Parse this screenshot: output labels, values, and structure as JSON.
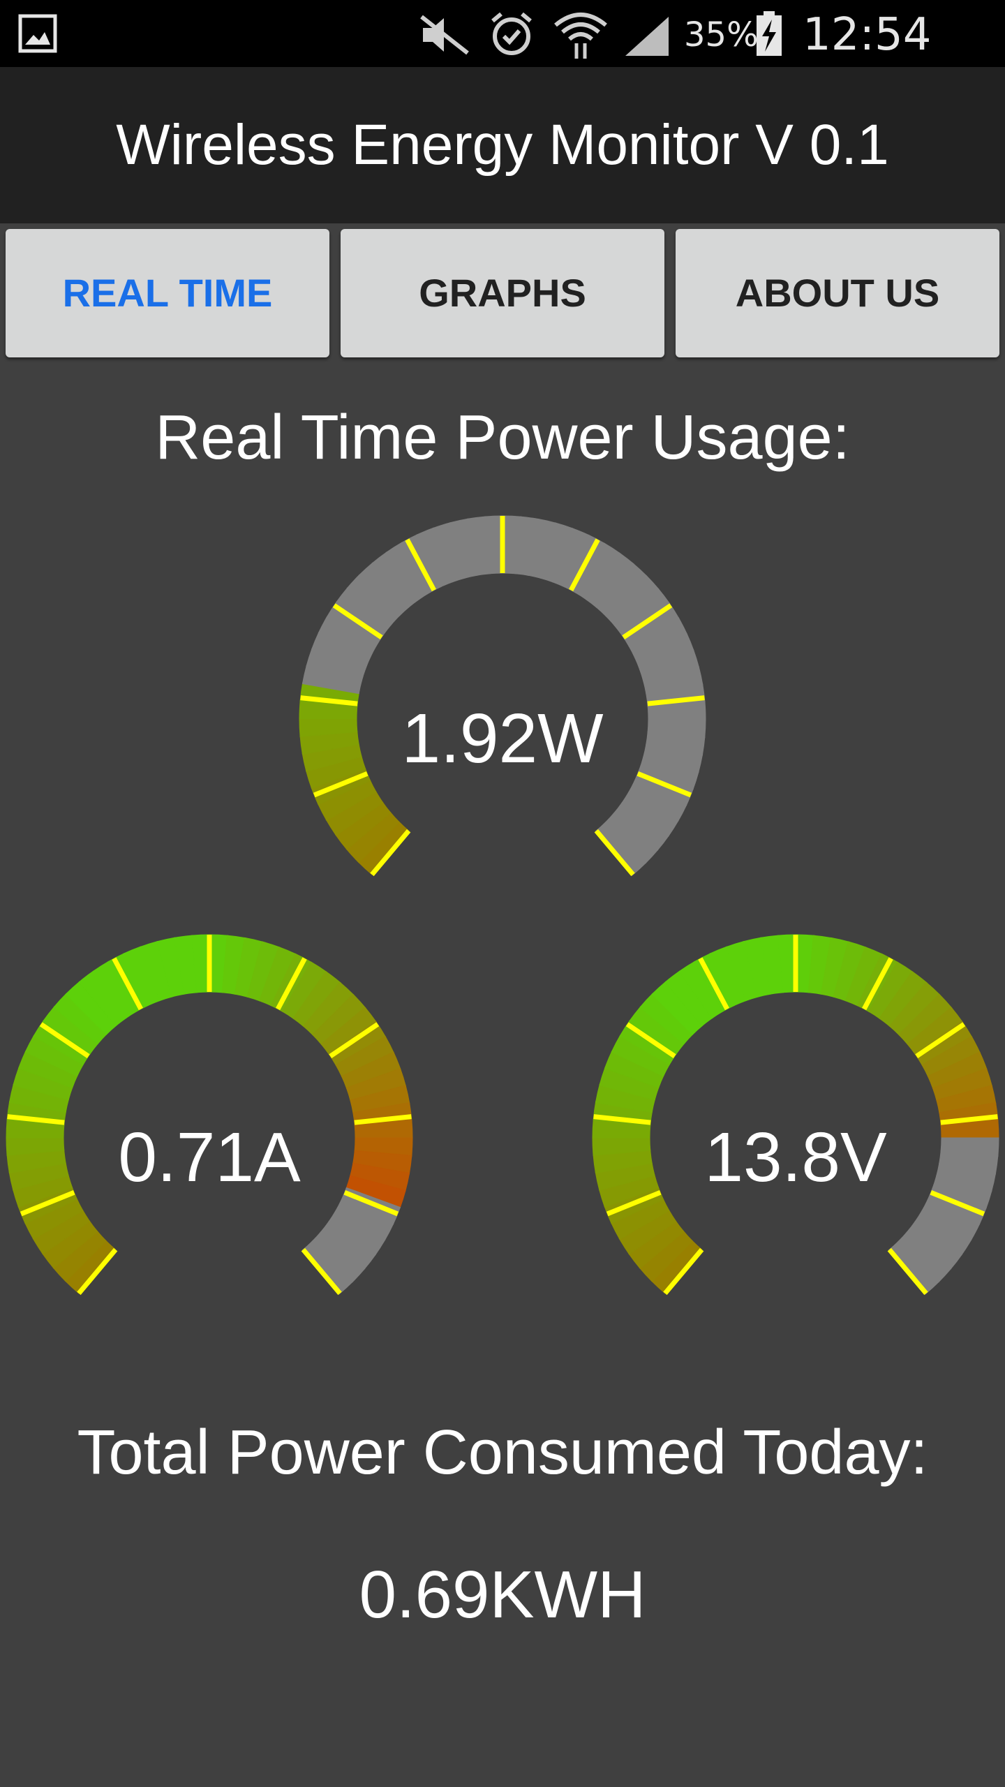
{
  "status_bar": {
    "icons": [
      "gallery-icon",
      "mute-icon",
      "alarm-icon",
      "wifi-icon",
      "signal-icon",
      "battery-charging-icon"
    ],
    "battery_percent": "35%",
    "time": "12:54 AM"
  },
  "app_bar": {
    "title": "Wireless Energy Monitor V 0.1"
  },
  "tabs": [
    {
      "label": "REAL TIME",
      "active": true
    },
    {
      "label": "GRAPHS",
      "active": false
    },
    {
      "label": "ABOUT US",
      "active": false
    }
  ],
  "realtime": {
    "heading": "Real Time Power Usage:",
    "gauges": [
      {
        "id": "power",
        "label": "1.92W",
        "fill_fraction": 0.22,
        "scheme": "green-only"
      },
      {
        "id": "current",
        "label": "0.71A",
        "fill_fraction": 0.89,
        "scheme": "green-to-red"
      },
      {
        "id": "voltage",
        "label": "13.8V",
        "fill_fraction": 0.82,
        "scheme": "green-to-red"
      }
    ]
  },
  "total": {
    "heading": "Total Power Consumed Today:",
    "value": "0.69KWH"
  },
  "colors": {
    "accent_blue": "#1a6fe8",
    "background": "#404040",
    "app_bar": "#212121",
    "tick": "#ffff00",
    "gauge_track": "#808080",
    "gauge_green": "#5dd10a",
    "gauge_olive": "#9a7e00",
    "gauge_red": "#e02a00"
  }
}
